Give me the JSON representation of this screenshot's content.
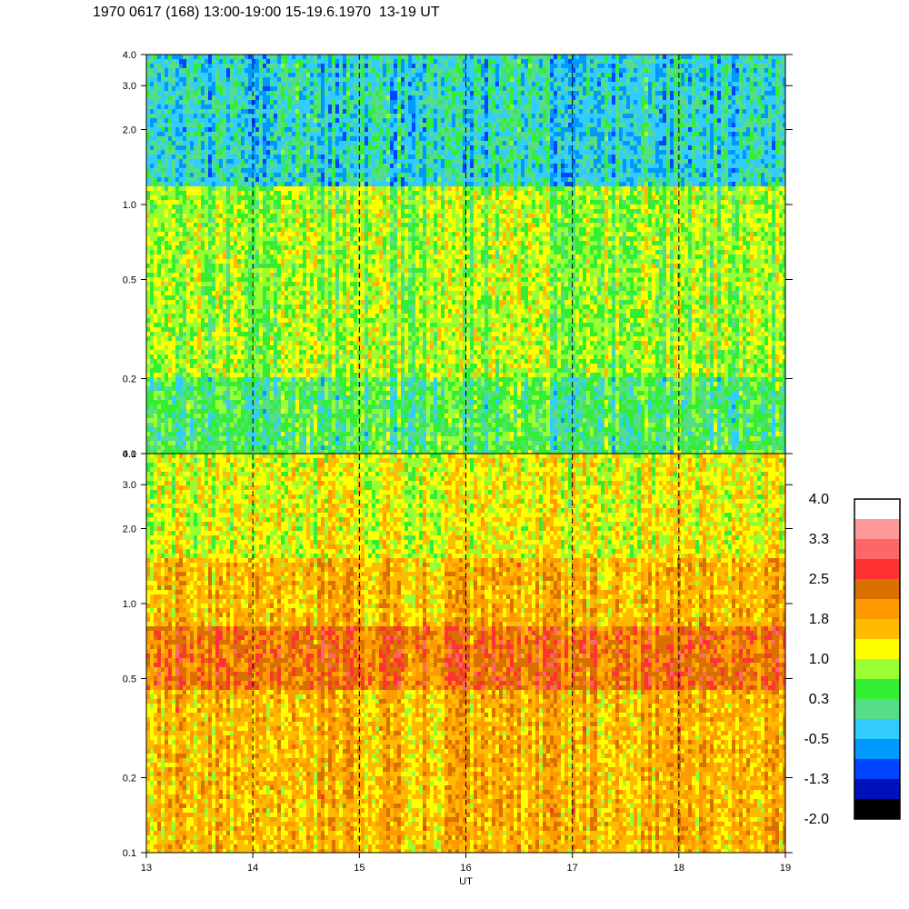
{
  "title": "1970 0617 (168) 13:00-19:00 15-19.6.1970  13-19 UT",
  "chart_data": {
    "type": "heatmap",
    "xlabel": "UT",
    "x_ticks": [
      13,
      14,
      15,
      16,
      17,
      18,
      19
    ],
    "xlim": [
      13,
      19
    ],
    "y_scale": "log",
    "ylim": [
      0.1,
      4.0
    ],
    "y_ticks": [
      0.1,
      0.2,
      0.5,
      1.0,
      2.0,
      3.0,
      4.0
    ],
    "y_tick_labels": [
      "0.1",
      "0.2",
      "0.5",
      "1.0",
      "2.0",
      "3.0",
      "4.0"
    ],
    "panels": [
      {
        "name": "upper",
        "description_levels": [
          {
            "y_range": [
              0.1,
              0.2
            ],
            "level": 0.3
          },
          {
            "y_range": [
              0.2,
              0.4
            ],
            "level": 0.8
          },
          {
            "y_range": [
              0.4,
              1.2
            ],
            "level": 0.8
          },
          {
            "y_range": [
              1.2,
              4.0
            ],
            "level": -0.2
          }
        ]
      },
      {
        "name": "lower",
        "description_levels": [
          {
            "y_range": [
              0.1,
              0.45
            ],
            "level": 1.6
          },
          {
            "y_range": [
              0.45,
              0.8
            ],
            "level": 2.2
          },
          {
            "y_range": [
              0.8,
              1.5
            ],
            "level": 1.6
          },
          {
            "y_range": [
              1.5,
              4.0
            ],
            "level": 1.1
          }
        ]
      }
    ],
    "colorbar": {
      "tick_labels": [
        "4.0",
        "3.3",
        "2.5",
        "1.8",
        "1.0",
        "0.3",
        "-0.5",
        "-1.3",
        "-2.0"
      ],
      "colors": [
        "#ffffff",
        "#ff9999",
        "#ff6666",
        "#ff3333",
        "#d97000",
        "#ff9900",
        "#ffbb00",
        "#ffff00",
        "#99ff33",
        "#33ee33",
        "#55dd88",
        "#33ccff",
        "#0099ff",
        "#0044ff",
        "#0011bb",
        "#000000"
      ]
    }
  }
}
